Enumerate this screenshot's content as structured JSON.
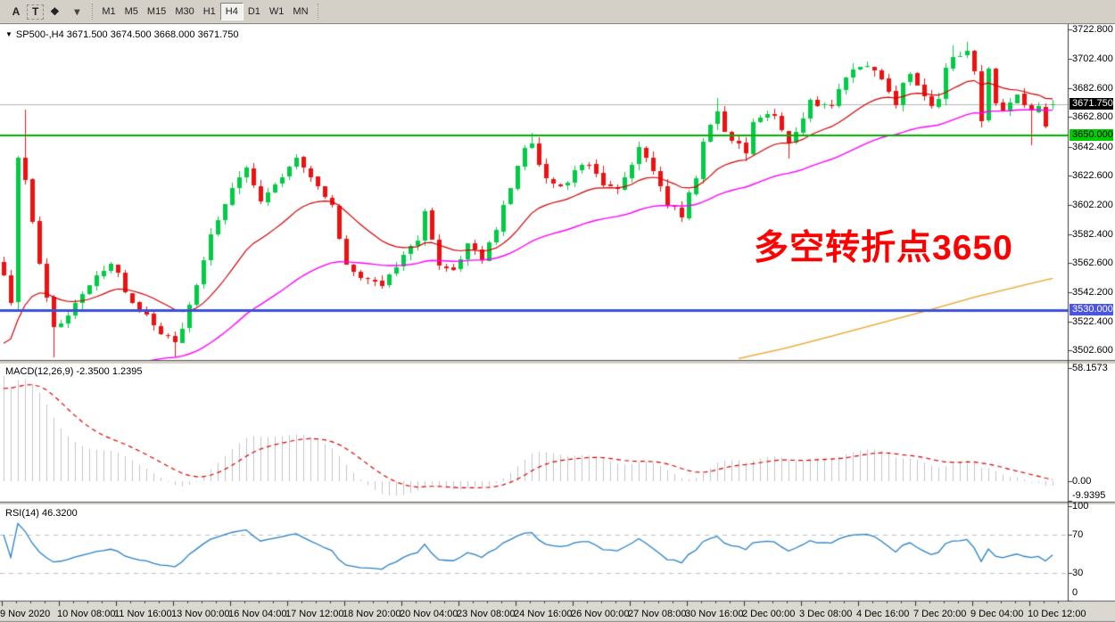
{
  "window": {
    "toolbar": {
      "tool_buttons": [
        {
          "name": "arrow-label-tool",
          "label": "A"
        },
        {
          "name": "text-tool",
          "label": "T"
        },
        {
          "name": "shapes-tool",
          "label": "❖"
        },
        {
          "name": "shapes-dropdown",
          "label": "▾"
        }
      ],
      "timeframes": [
        "M1",
        "M5",
        "M15",
        "M30",
        "H1",
        "H4",
        "D1",
        "W1",
        "MN"
      ],
      "active_timeframe": "H4"
    }
  },
  "chart_data": {
    "type": "candlestick",
    "symbol": "SP500-",
    "timeframe": "H4",
    "title_text": "SP500-,H4 3671.500 3674.500 3668.000 3671.750",
    "title_marker": "▼",
    "last_ohlc": {
      "open": 3671.5,
      "high": 3674.5,
      "low": 3668.0,
      "close": 3671.75
    },
    "colors": {
      "up": "#00cc44",
      "down": "#ee1111",
      "ma_fast": "#d40000",
      "ma_mid": "#ff00ff",
      "ma_slow": "#f0a020",
      "hline_green": "#00b300",
      "hline_blue": "#3c50d8",
      "macd_signal": "#e00000",
      "macd_hist": "#c4c4c4",
      "rsi": "#2880c8",
      "rsi_levels": "#c0c0c0",
      "current_price_line": "#b4b4b4"
    },
    "price_axis": {
      "visible_min": 3496,
      "visible_max": 3726.5,
      "tick_values": [
        3722.8,
        3702.4,
        3682.6,
        3662.8,
        3642.4,
        3622.6,
        3602.2,
        3582.4,
        3562.6,
        3542.2,
        3522.4,
        3502.6
      ],
      "tick_labels": [
        "3722.800",
        "3702.400",
        "3682.600",
        "3662.800",
        "3642.400",
        "3622.600",
        "3602.200",
        "3582.400",
        "3562.600",
        "3542.200",
        "3522.400",
        "3502.600"
      ]
    },
    "hlines": [
      {
        "value": 3650,
        "label": "3650.000",
        "color": "#00b300",
        "width": 2,
        "tag_bg": "#00cc00",
        "tag_fg": "#000000"
      },
      {
        "value": 3530,
        "label": "3530.000",
        "color": "#3c50d8",
        "width": 3,
        "tag_bg": "#4a55e0",
        "tag_fg": "#ffffff"
      }
    ],
    "current_price": {
      "value": 3671.75,
      "label": "3671.750",
      "tag_bg": "#000000",
      "tag_fg": "#ffffff"
    },
    "candles": {
      "count": 148,
      "close_keypoints": [
        [
          0,
          3552
        ],
        [
          1,
          3536
        ],
        [
          2,
          3634
        ],
        [
          3,
          3618
        ],
        [
          5,
          3560
        ],
        [
          7,
          3516
        ],
        [
          9,
          3526
        ],
        [
          12,
          3548
        ],
        [
          15,
          3564
        ],
        [
          17,
          3544
        ],
        [
          21,
          3518
        ],
        [
          24,
          3506
        ],
        [
          26,
          3532
        ],
        [
          29,
          3580
        ],
        [
          32,
          3614
        ],
        [
          34,
          3628
        ],
        [
          36,
          3606
        ],
        [
          39,
          3624
        ],
        [
          41,
          3634
        ],
        [
          44,
          3614
        ],
        [
          46,
          3600
        ],
        [
          48,
          3562
        ],
        [
          50,
          3552
        ],
        [
          53,
          3548
        ],
        [
          55,
          3562
        ],
        [
          58,
          3578
        ],
        [
          59,
          3596
        ],
        [
          61,
          3560
        ],
        [
          63,
          3556
        ],
        [
          65,
          3576
        ],
        [
          67,
          3566
        ],
        [
          69,
          3586
        ],
        [
          71,
          3614
        ],
        [
          73,
          3640
        ],
        [
          74,
          3644
        ],
        [
          76,
          3620
        ],
        [
          78,
          3614
        ],
        [
          80,
          3625
        ],
        [
          82,
          3632
        ],
        [
          84,
          3618
        ],
        [
          86,
          3614
        ],
        [
          88,
          3632
        ],
        [
          89,
          3640
        ],
        [
          91,
          3626
        ],
        [
          93,
          3604
        ],
        [
          95,
          3596
        ],
        [
          97,
          3622
        ],
        [
          98,
          3645
        ],
        [
          99,
          3658
        ],
        [
          100,
          3666
        ],
        [
          101,
          3654
        ],
        [
          102,
          3646
        ],
        [
          104,
          3640
        ],
        [
          105,
          3658
        ],
        [
          107,
          3666
        ],
        [
          108,
          3662
        ],
        [
          110,
          3646
        ],
        [
          111,
          3654
        ],
        [
          112,
          3664
        ],
        [
          113,
          3674
        ],
        [
          114,
          3668
        ],
        [
          116,
          3672
        ],
        [
          118,
          3688
        ],
        [
          120,
          3698
        ],
        [
          121,
          3700
        ],
        [
          122,
          3694
        ],
        [
          123,
          3688
        ],
        [
          124,
          3678
        ],
        [
          125,
          3672
        ],
        [
          126,
          3684
        ],
        [
          127,
          3692
        ],
        [
          128,
          3682
        ],
        [
          129,
          3678
        ],
        [
          130,
          3668
        ],
        [
          131,
          3674
        ],
        [
          132,
          3694
        ],
        [
          133,
          3706
        ],
        [
          134,
          3704
        ],
        [
          135,
          3709
        ],
        [
          136,
          3692
        ],
        [
          137,
          3660
        ],
        [
          138,
          3696
        ],
        [
          139,
          3674
        ],
        [
          140,
          3668
        ],
        [
          141,
          3674
        ],
        [
          142,
          3678
        ],
        [
          143,
          3670
        ],
        [
          144,
          3666
        ],
        [
          145,
          3672
        ],
        [
          146,
          3658
        ],
        [
          147,
          3671.75
        ]
      ],
      "wick_overrides": {
        "3": {
          "high": 3668
        },
        "7": {
          "low": 3498
        },
        "24": {
          "low": 3498
        },
        "74": {
          "high": 3652
        },
        "95": {
          "low": 3591
        },
        "100": {
          "high": 3676
        },
        "104": {
          "low": 3632
        },
        "110": {
          "low": 3634
        },
        "133": {
          "high": 3712
        },
        "135": {
          "high": 3714
        },
        "144": {
          "low": 3643
        }
      }
    },
    "moving_averages": [
      {
        "name": "fast",
        "period": 18,
        "seed": 3502,
        "color_key": "ma_fast"
      },
      {
        "name": "mid",
        "period": 48,
        "seed": 3420,
        "color_key": "ma_mid"
      }
    ],
    "ma_slow_keypoints": [
      [
        828,
        3497
      ],
      [
        880,
        3504
      ],
      [
        930,
        3512
      ],
      [
        985,
        3521
      ],
      [
        1040,
        3530
      ],
      [
        1092,
        3539
      ],
      [
        1145,
        3547
      ],
      [
        1180,
        3552
      ]
    ],
    "macd": {
      "label": "MACD(12,26,9)",
      "value_text": "-2.3500 1.2395",
      "fast": 12,
      "slow": 26,
      "signal": 9,
      "axis_values": [
        58.1573,
        0,
        -9.9395
      ],
      "axis_labels": [
        "58.1573",
        "0.00",
        "-9.9395"
      ],
      "synthesis_seeds": {
        "ema_fast": 3552,
        "ema_slow": 3493.8,
        "signal": 46
      }
    },
    "rsi": {
      "label": "RSI(14)",
      "value_text": "46.3200",
      "period": 14,
      "levels": [
        70,
        30
      ],
      "axis_values": [
        100,
        70,
        30,
        0
      ],
      "axis_labels": [
        "100",
        "70",
        "30",
        "0"
      ],
      "synthesis_seeds": {
        "gain": 2.0,
        "loss": 0.86
      }
    },
    "x_axis": {
      "labels": [
        "9 Nov 2020",
        "10 Nov 08:00",
        "11 Nov 16:00",
        "13 Nov 00:00",
        "16 Nov 04:00",
        "17 Nov 12:00",
        "18 Nov 20:00",
        "20 Nov 04:00",
        "23 Nov 08:00",
        "24 Nov 16:00",
        "26 Nov 00:00",
        "27 Nov 08:00",
        "30 Nov 16:00",
        "2 Dec 00:00",
        "3 Dec 08:00",
        "4 Dec 16:00",
        "7 Dec 20:00",
        "9 Dec 04:00",
        "10 Dec 12:00"
      ],
      "tick_x": [
        2,
        66,
        130,
        194,
        258,
        322,
        386,
        450,
        514,
        578,
        642,
        706,
        770,
        834,
        898,
        962,
        1026,
        1090,
        1154
      ]
    },
    "annotation": {
      "text": "多空转折点3650",
      "color": "#ff0000"
    }
  }
}
